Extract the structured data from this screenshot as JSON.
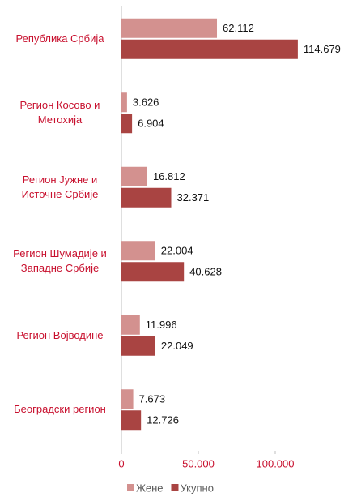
{
  "chart_data": {
    "type": "hbar",
    "categories": [
      "Република Србија",
      "Регион Косово и\nМетохија",
      "Регион Јужне и\nИсточне Србије",
      "Регион Шумадије и\nЗападне Србије",
      "Регион Војводине",
      "Београдски регион"
    ],
    "series": [
      {
        "name": "Жене",
        "color": "#d3918f",
        "values": [
          62112,
          3626,
          16812,
          22004,
          11996,
          7673
        ],
        "value_labels": [
          "62.112",
          "3.626",
          "16.812",
          "22.004",
          "11.996",
          "7.673"
        ]
      },
      {
        "name": "Укупно",
        "color": "#a94442",
        "values": [
          114679,
          6904,
          32371,
          40628,
          22049,
          12726
        ],
        "value_labels": [
          "114.679",
          "6.904",
          "32.371",
          "40.628",
          "22.049",
          "12.726"
        ]
      }
    ],
    "xlim": [
      0,
      150000
    ],
    "xticks": [
      0,
      {
        "value": 50000,
        "label": "50.000"
      },
      {
        "value": 100000,
        "label": "100.000"
      }
    ],
    "legend": "bottom"
  }
}
